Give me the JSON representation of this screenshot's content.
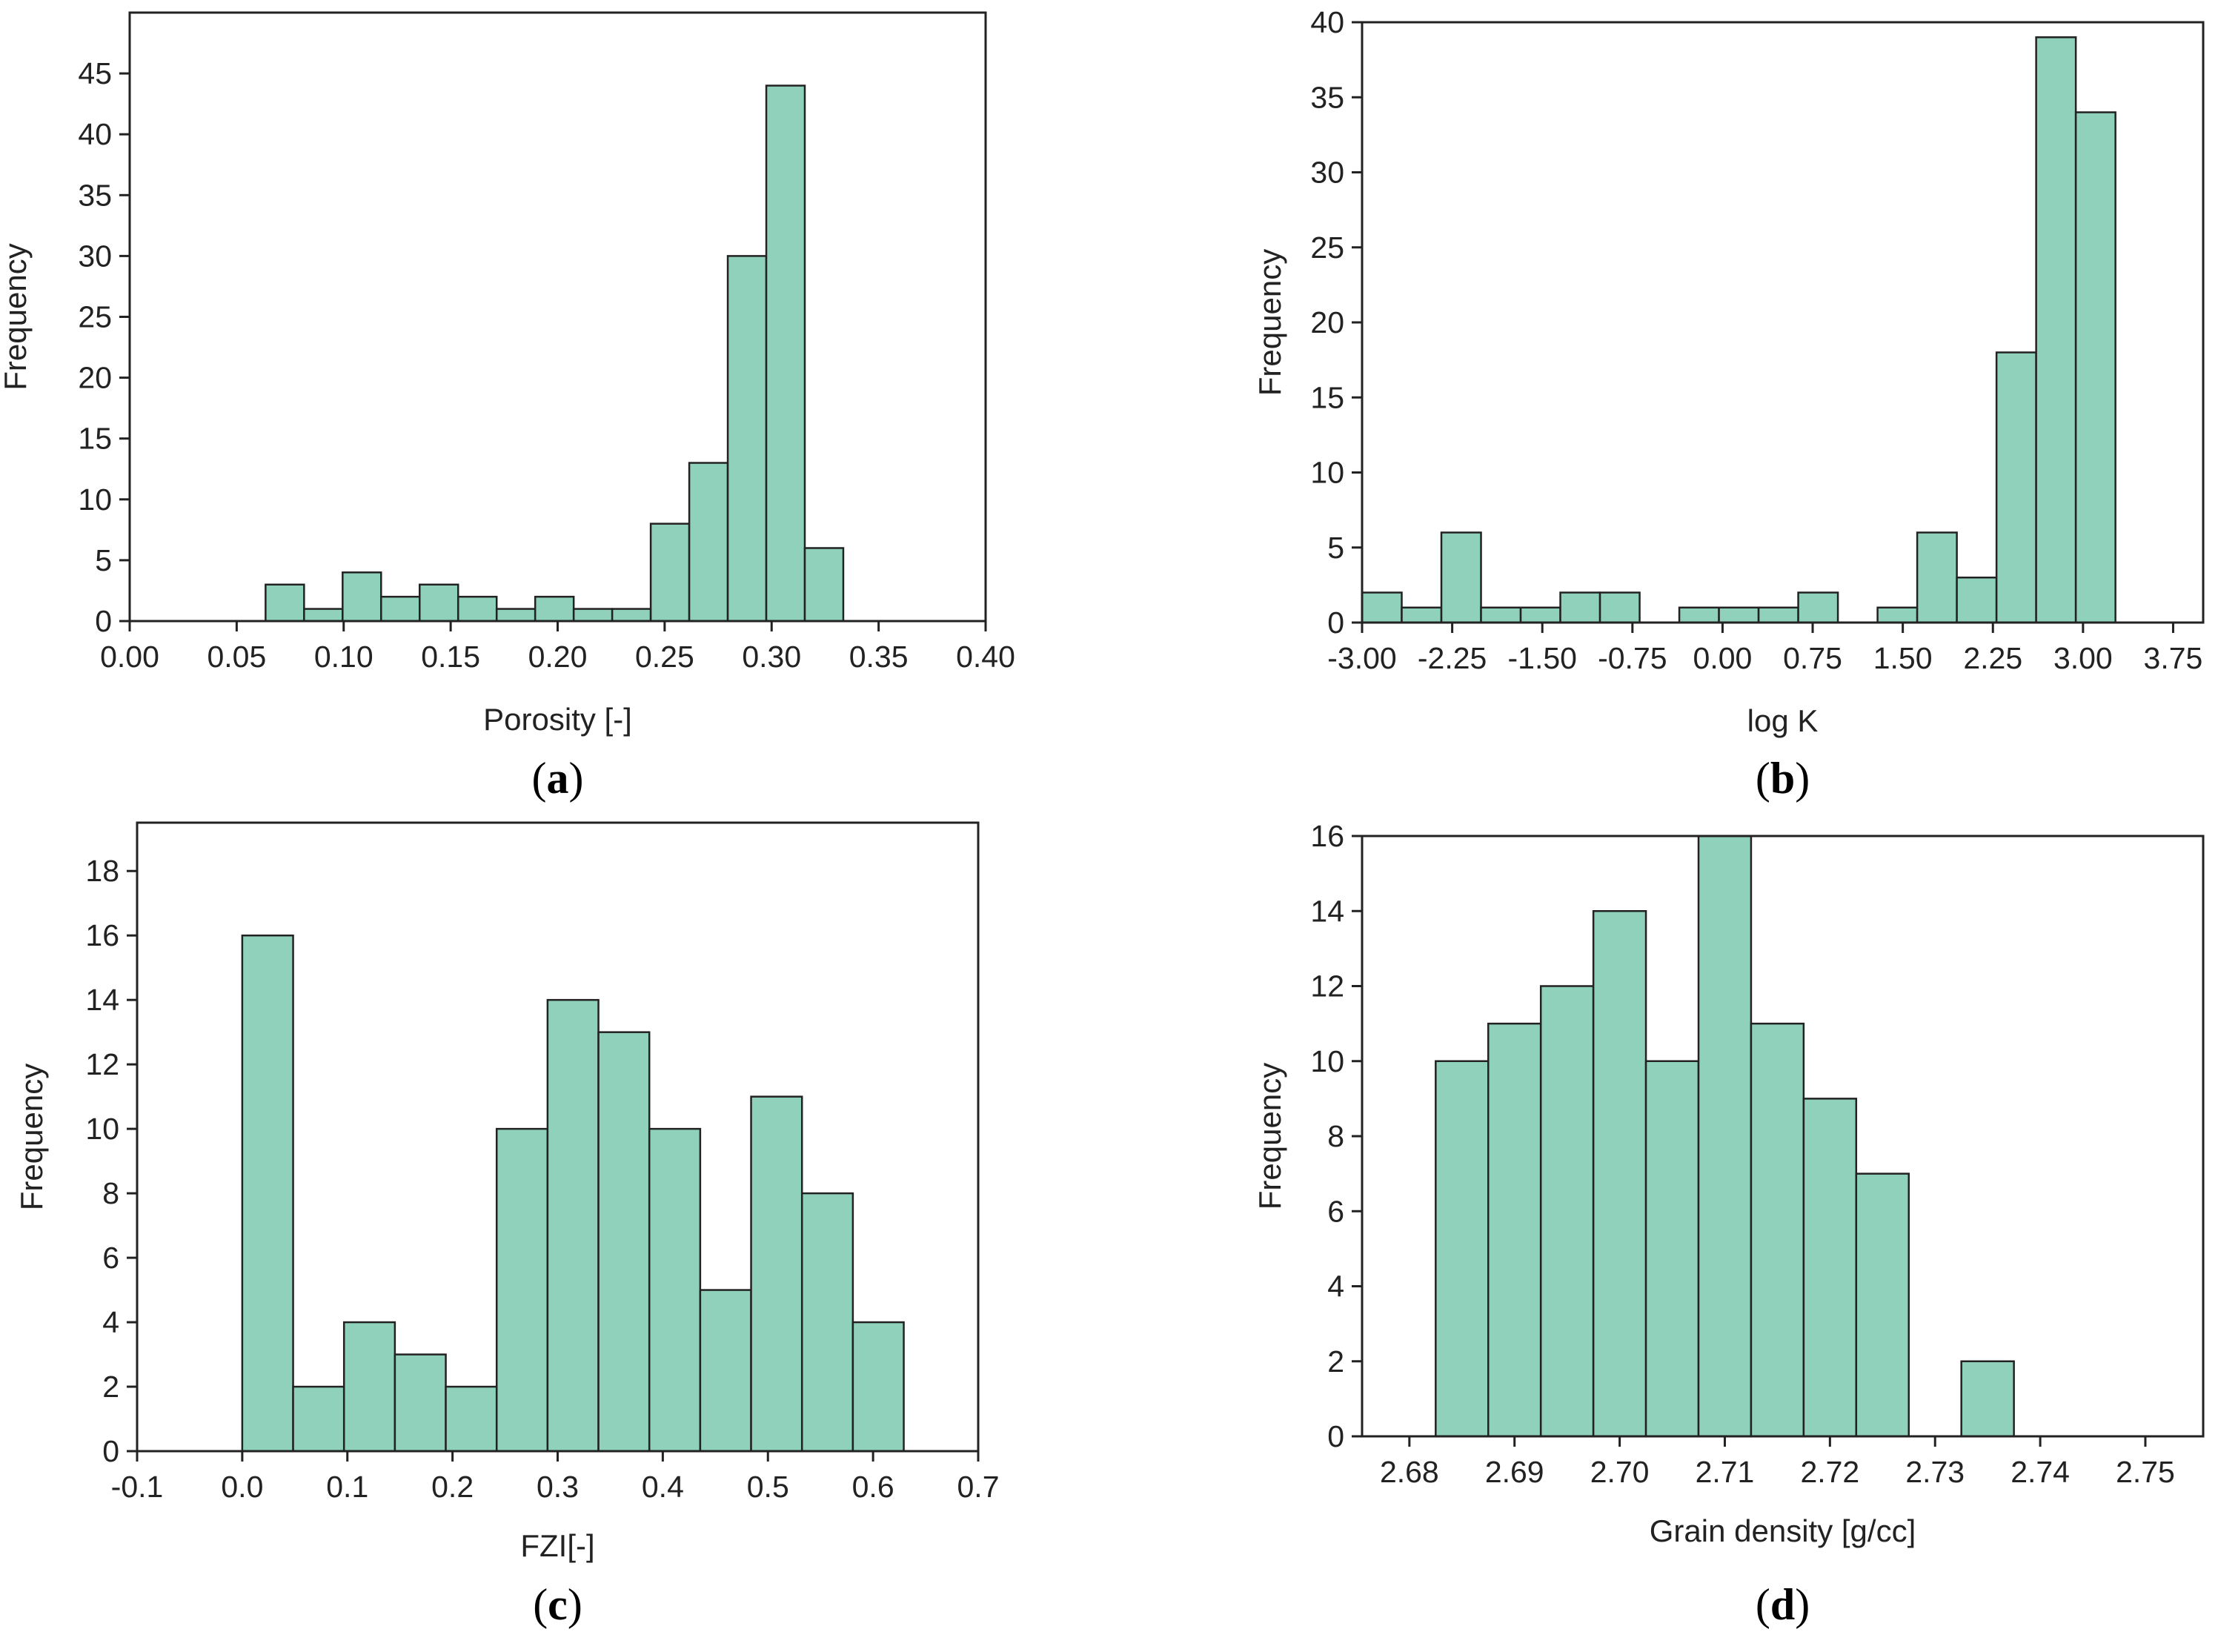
{
  "style": {
    "bar_color": "#8fd1bb",
    "edge_color": "#222222",
    "axis_color": "#222222"
  },
  "chart_data": [
    {
      "type": "histogram",
      "panel": "a",
      "xlabel": "Porosity [-]",
      "ylabel": "Frequency",
      "xlim": [
        0.0,
        0.4
      ],
      "ylim": [
        0,
        50
      ],
      "xticks": [
        "0.00",
        "0.05",
        "0.10",
        "0.15",
        "0.20",
        "0.25",
        "0.30",
        "0.35",
        "0.40"
      ],
      "yticks": [
        "0",
        "5",
        "10",
        "15",
        "20",
        "25",
        "30",
        "35",
        "40",
        "45"
      ],
      "bin_start": 0.0635,
      "bin_width": 0.018,
      "values": [
        3,
        1,
        4,
        2,
        3,
        2,
        1,
        2,
        1,
        1,
        8,
        13,
        30,
        44,
        6
      ]
    },
    {
      "type": "histogram",
      "panel": "b",
      "xlabel": "log K",
      "ylabel": "Frequency",
      "xlim": [
        -3.0,
        4.0
      ],
      "ylim": [
        0,
        40
      ],
      "xticks": [
        "-3.00",
        "-2.25",
        "-1.50",
        "-0.75",
        "0.00",
        "0.75",
        "1.50",
        "2.25",
        "3.00",
        "3.75"
      ],
      "yticks": [
        "0",
        "5",
        "10",
        "15",
        "20",
        "25",
        "30",
        "35",
        "40"
      ],
      "bin_start": -3.0,
      "bin_width": 0.33,
      "values": [
        2,
        1,
        6,
        1,
        1,
        2,
        2,
        0,
        1,
        1,
        1,
        2,
        0,
        1,
        6,
        3,
        18,
        39,
        34
      ]
    },
    {
      "type": "histogram",
      "panel": "c",
      "xlabel": "FZI[-]",
      "ylabel": "Frequency",
      "xlim": [
        -0.1,
        0.7
      ],
      "ylim": [
        0,
        19.5
      ],
      "xticks": [
        "-0.1",
        "0.0",
        "0.1",
        "0.2",
        "0.3",
        "0.4",
        "0.5",
        "0.6",
        "0.7"
      ],
      "yticks": [
        "0",
        "2",
        "4",
        "6",
        "8",
        "10",
        "12",
        "14",
        "16",
        "18"
      ],
      "bin_start": 0.0,
      "bin_width": 0.0484,
      "values": [
        16,
        2,
        4,
        3,
        2,
        10,
        14,
        13,
        10,
        5,
        11,
        8,
        4
      ]
    },
    {
      "type": "histogram",
      "panel": "d",
      "xlabel": "Grain density [g/cc]",
      "ylabel": "Frequency",
      "xlim": [
        2.6755,
        2.7555
      ],
      "ylim": [
        0,
        16
      ],
      "xticks": [
        "2.68",
        "2.69",
        "2.70",
        "2.71",
        "2.72",
        "2.73",
        "2.74",
        "2.75"
      ],
      "yticks": [
        "0",
        "2",
        "4",
        "6",
        "8",
        "10",
        "12",
        "14",
        "16"
      ],
      "bin_start": 2.6825,
      "bin_width": 0.005,
      "values": [
        10,
        11,
        12,
        14,
        10,
        16,
        11,
        9,
        7,
        0,
        2
      ]
    }
  ]
}
